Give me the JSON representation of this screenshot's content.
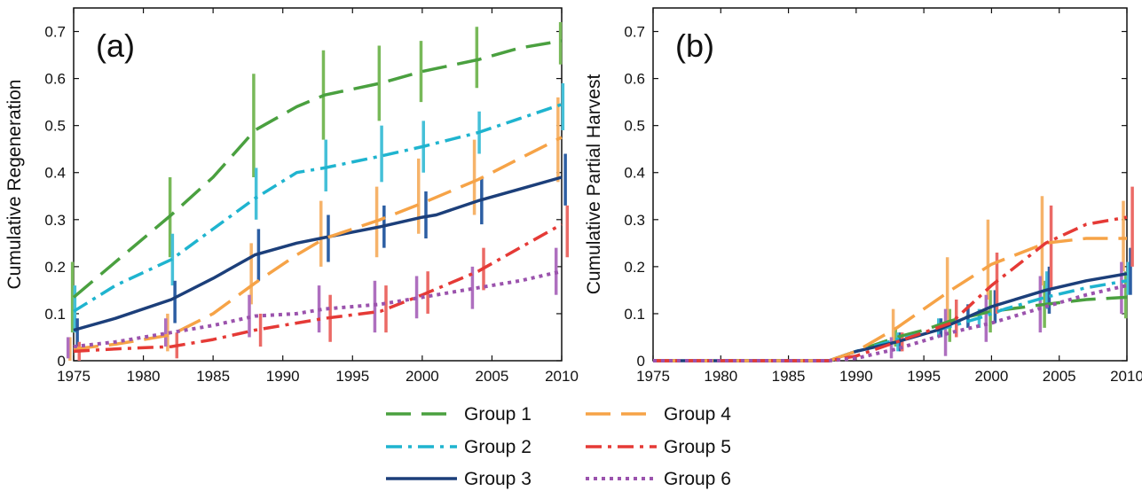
{
  "series_styles": [
    {
      "name": "Group  1",
      "color": "#4aa03f",
      "err_color": "#78b959",
      "dash": "28,12",
      "width": 3.5
    },
    {
      "name": "Group  2",
      "color": "#1fb4cf",
      "err_color": "#45c0d8",
      "dash": "18,7,4,7",
      "width": 3.5
    },
    {
      "name": "Group  3",
      "color": "#1c3f7a",
      "err_color": "#2c5ea3",
      "dash": "",
      "width": 3.5
    },
    {
      "name": "Group  4",
      "color": "#f6a347",
      "err_color": "#f6b36a",
      "dash": "28,12",
      "width": 3.5
    },
    {
      "name": "Group  5",
      "color": "#e53a36",
      "err_color": "#eb6a66",
      "dash": "18,7,4,7",
      "width": 3.5
    },
    {
      "name": "Group  6",
      "color": "#9b53ad",
      "err_color": "#ae6fbf",
      "dash": "4,5",
      "width": 4
    }
  ],
  "legend": {
    "items": [
      "Group  1",
      "Group  2",
      "Group  3",
      "Group  4",
      "Group  5",
      "Group  6"
    ],
    "placement": "bottom-center"
  },
  "chart_data": [
    {
      "type": "line",
      "panel_label": "(a)",
      "ylabel": "Cumulative Regeneration",
      "xlim": [
        1975,
        2010
      ],
      "ylim": [
        0,
        0.75
      ],
      "xticks": [
        1975,
        1980,
        1985,
        1990,
        1995,
        2000,
        2005,
        2010
      ],
      "yticks": [
        0,
        0.1,
        0.2,
        0.3,
        0.4,
        0.5,
        0.6,
        0.7
      ],
      "ytick_labels": [
        "0",
        "0.1",
        "0.2",
        "0.3",
        "0.4",
        "0.5",
        "0.6",
        "0.7"
      ],
      "grid": false,
      "series": [
        {
          "name": "Group  1",
          "x": [
            1975,
            1978,
            1982,
            1985,
            1988,
            1991,
            1993,
            1997,
            2000,
            2004,
            2007,
            2010
          ],
          "y": [
            0.135,
            0.21,
            0.31,
            0.39,
            0.49,
            0.54,
            0.565,
            0.59,
            0.615,
            0.64,
            0.665,
            0.68
          ],
          "err": [
            [
              1975,
              0.06,
              0.21
            ],
            [
              1982,
              0.22,
              0.39
            ],
            [
              1988,
              0.39,
              0.61
            ],
            [
              1993,
              0.47,
              0.66
            ],
            [
              1997,
              0.51,
              0.67
            ],
            [
              2000,
              0.55,
              0.68
            ],
            [
              2004,
              0.58,
              0.71
            ],
            [
              2010,
              0.63,
              0.72
            ]
          ]
        },
        {
          "name": "Group  2",
          "x": [
            1975,
            1978,
            1982,
            1985,
            1988,
            1991,
            1993,
            1997,
            2000,
            2004,
            2007,
            2010
          ],
          "y": [
            0.105,
            0.16,
            0.215,
            0.28,
            0.345,
            0.4,
            0.41,
            0.435,
            0.455,
            0.485,
            0.515,
            0.545
          ],
          "err": [
            [
              1975,
              0.06,
              0.16
            ],
            [
              1982,
              0.16,
              0.27
            ],
            [
              1988,
              0.3,
              0.41
            ],
            [
              1993,
              0.36,
              0.47
            ],
            [
              1997,
              0.38,
              0.5
            ],
            [
              2000,
              0.4,
              0.51
            ],
            [
              2004,
              0.44,
              0.53
            ],
            [
              2010,
              0.49,
              0.59
            ]
          ]
        },
        {
          "name": "Group  3",
          "x": [
            1975,
            1978,
            1982,
            1985,
            1988,
            1991,
            1993,
            1997,
            2000,
            2001,
            2004,
            2007,
            2010
          ],
          "y": [
            0.065,
            0.09,
            0.13,
            0.175,
            0.225,
            0.25,
            0.262,
            0.285,
            0.305,
            0.31,
            0.34,
            0.365,
            0.39
          ],
          "err": [
            [
              1975,
              0.03,
              0.09
            ],
            [
              1982,
              0.08,
              0.17
            ],
            [
              1988,
              0.17,
              0.28
            ],
            [
              1993,
              0.21,
              0.31
            ],
            [
              1997,
              0.24,
              0.33
            ],
            [
              2000,
              0.26,
              0.36
            ],
            [
              2004,
              0.29,
              0.39
            ],
            [
              2010,
              0.33,
              0.44
            ]
          ]
        },
        {
          "name": "Group  4",
          "x": [
            1975,
            1978,
            1982,
            1985,
            1988,
            1991,
            1993,
            1997,
            2000,
            2004,
            2007,
            2010
          ],
          "y": [
            0.025,
            0.035,
            0.055,
            0.1,
            0.165,
            0.225,
            0.26,
            0.3,
            0.335,
            0.385,
            0.43,
            0.475
          ],
          "err": [
            [
              1975,
              0.0,
              0.05
            ],
            [
              1982,
              0.02,
              0.1
            ],
            [
              1988,
              0.12,
              0.25
            ],
            [
              1993,
              0.2,
              0.34
            ],
            [
              1997,
              0.22,
              0.37
            ],
            [
              2000,
              0.27,
              0.43
            ],
            [
              2004,
              0.31,
              0.47
            ],
            [
              2010,
              0.38,
              0.56
            ]
          ]
        },
        {
          "name": "Group  5",
          "x": [
            1975,
            1978,
            1982,
            1985,
            1988,
            1991,
            1993,
            1997,
            2000,
            2004,
            2007,
            2010
          ],
          "y": [
            0.02,
            0.025,
            0.03,
            0.045,
            0.065,
            0.08,
            0.09,
            0.105,
            0.14,
            0.19,
            0.24,
            0.29
          ],
          "err": [
            [
              1975,
              0.0,
              0.04
            ],
            [
              1982,
              0.005,
              0.06
            ],
            [
              1988,
              0.03,
              0.1
            ],
            [
              1993,
              0.04,
              0.14
            ],
            [
              1997,
              0.06,
              0.16
            ],
            [
              2000,
              0.1,
              0.19
            ],
            [
              2004,
              0.15,
              0.24
            ],
            [
              2010,
              0.22,
              0.33
            ]
          ]
        },
        {
          "name": "Group  6",
          "x": [
            1975,
            1978,
            1982,
            1985,
            1988,
            1991,
            1993,
            1997,
            2000,
            2004,
            2007,
            2010
          ],
          "y": [
            0.03,
            0.04,
            0.06,
            0.075,
            0.095,
            0.1,
            0.11,
            0.12,
            0.135,
            0.155,
            0.17,
            0.19
          ],
          "err": [
            [
              1975,
              0.005,
              0.05
            ],
            [
              1982,
              0.03,
              0.09
            ],
            [
              1988,
              0.05,
              0.14
            ],
            [
              1993,
              0.06,
              0.16
            ],
            [
              1997,
              0.06,
              0.17
            ],
            [
              2000,
              0.09,
              0.18
            ],
            [
              2004,
              0.11,
              0.2
            ],
            [
              2010,
              0.14,
              0.24
            ]
          ]
        }
      ]
    },
    {
      "type": "line",
      "panel_label": "(b)",
      "ylabel": "Cumulative Partial Harvest",
      "xlim": [
        1975,
        2010
      ],
      "ylim": [
        0,
        0.75
      ],
      "xticks": [
        1975,
        1980,
        1985,
        1990,
        1995,
        2000,
        2005,
        2010
      ],
      "yticks": [
        0,
        0.1,
        0.2,
        0.3,
        0.4,
        0.5,
        0.6,
        0.7
      ],
      "ytick_labels": [
        "0",
        "0.1",
        "0.2",
        "0.3",
        "0.4",
        "0.5",
        "0.6",
        "0.7"
      ],
      "grid": false,
      "series": [
        {
          "name": "Group  1",
          "x": [
            1975,
            1988,
            1990,
            1993,
            1995,
            1997,
            2000,
            2004,
            2007,
            2010
          ],
          "y": [
            0,
            0,
            0.02,
            0.05,
            0.065,
            0.085,
            0.105,
            0.12,
            0.13,
            0.135
          ],
          "err": [
            [
              1993,
              0.03,
              0.07
            ],
            [
              1997,
              0.04,
              0.11
            ],
            [
              2000,
              0.06,
              0.15
            ],
            [
              2004,
              0.07,
              0.17
            ],
            [
              2010,
              0.09,
              0.19
            ]
          ]
        },
        {
          "name": "Group  2",
          "x": [
            1975,
            1988,
            1990,
            1993,
            1996,
            1999,
            2001,
            2004,
            2007,
            2010
          ],
          "y": [
            0,
            0,
            0.02,
            0.045,
            0.065,
            0.09,
            0.11,
            0.135,
            0.155,
            0.17
          ],
          "err": [
            [
              1993,
              0.02,
              0.06
            ],
            [
              1996,
              0.05,
              0.09
            ],
            [
              1999,
              0.07,
              0.11
            ],
            [
              2004,
              0.11,
              0.19
            ],
            [
              2010,
              0.14,
              0.21
            ]
          ]
        },
        {
          "name": "Group  3",
          "x": [
            1975,
            1988,
            1990,
            1993,
            1996,
            1998,
            2000,
            2004,
            2007,
            2010
          ],
          "y": [
            0,
            0,
            0.02,
            0.04,
            0.065,
            0.09,
            0.115,
            0.15,
            0.17,
            0.185
          ],
          "err": [
            [
              1993,
              0.02,
              0.06
            ],
            [
              1996,
              0.05,
              0.09
            ],
            [
              1998,
              0.07,
              0.12
            ],
            [
              2000,
              0.08,
              0.15
            ],
            [
              2004,
              0.1,
              0.2
            ],
            [
              2010,
              0.14,
              0.24
            ]
          ]
        },
        {
          "name": "Group  4",
          "x": [
            1975,
            1988,
            1990,
            1993,
            1997,
            2000,
            2004,
            2007,
            2010
          ],
          "y": [
            0,
            0,
            0.02,
            0.07,
            0.15,
            0.205,
            0.25,
            0.26,
            0.26
          ],
          "err": [
            [
              1993,
              0.04,
              0.11
            ],
            [
              1997,
              0.07,
              0.22
            ],
            [
              2000,
              0.13,
              0.3
            ],
            [
              2004,
              0.16,
              0.35
            ],
            [
              2010,
              0.19,
              0.34
            ]
          ]
        },
        {
          "name": "Group  5",
          "x": [
            1975,
            1988,
            1990,
            1993,
            1997,
            2000,
            2004,
            2007,
            2010
          ],
          "y": [
            0,
            0,
            0.01,
            0.04,
            0.08,
            0.16,
            0.25,
            0.29,
            0.305
          ],
          "err": [
            [
              1993,
              0.02,
              0.06
            ],
            [
              1997,
              0.05,
              0.13
            ],
            [
              2000,
              0.1,
              0.23
            ],
            [
              2004,
              0.15,
              0.33
            ],
            [
              2010,
              0.2,
              0.37
            ]
          ]
        },
        {
          "name": "Group  6",
          "x": [
            1975,
            1988,
            1990,
            1993,
            1997,
            2000,
            2004,
            2007,
            2010
          ],
          "y": [
            0,
            0,
            0.005,
            0.025,
            0.06,
            0.08,
            0.115,
            0.14,
            0.16
          ],
          "err": [
            [
              1993,
              0.005,
              0.05
            ],
            [
              1997,
              0.01,
              0.11
            ],
            [
              2000,
              0.04,
              0.14
            ],
            [
              2004,
              0.06,
              0.18
            ],
            [
              2010,
              0.1,
              0.21
            ]
          ]
        }
      ]
    }
  ]
}
